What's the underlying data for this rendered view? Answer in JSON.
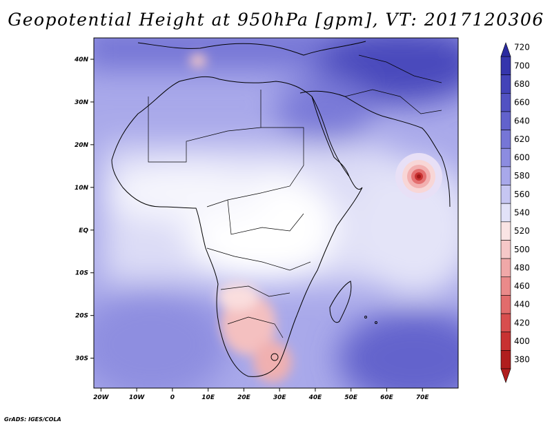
{
  "title": "Geopotential Height at 950hPa [gpm], VT: 2017120306",
  "credit": "GrADS: IGES/COLA",
  "map": {
    "projection": "lat-lon",
    "lon_range": [
      -22,
      80
    ],
    "lat_range": [
      -37,
      45
    ],
    "x_ticks": [
      {
        "lon": -20,
        "label": "20W"
      },
      {
        "lon": -10,
        "label": "10W"
      },
      {
        "lon": 0,
        "label": "0"
      },
      {
        "lon": 10,
        "label": "10E"
      },
      {
        "lon": 20,
        "label": "20E"
      },
      {
        "lon": 30,
        "label": "30E"
      },
      {
        "lon": 40,
        "label": "40E"
      },
      {
        "lon": 50,
        "label": "50E"
      },
      {
        "lon": 60,
        "label": "60E"
      },
      {
        "lon": 70,
        "label": "70E"
      }
    ],
    "y_ticks": [
      {
        "lat": 40,
        "label": "40N"
      },
      {
        "lat": 30,
        "label": "30N"
      },
      {
        "lat": 20,
        "label": "20N"
      },
      {
        "lat": 10,
        "label": "10N"
      },
      {
        "lat": 0,
        "label": "EQ"
      },
      {
        "lat": -10,
        "label": "10S"
      },
      {
        "lat": -20,
        "label": "20S"
      },
      {
        "lat": -30,
        "label": "30S"
      }
    ],
    "features": [
      {
        "name": "cyclone-low-arabian-sea",
        "lon": 68,
        "lat": 12.5,
        "value_gpm": 400
      },
      {
        "name": "low-western-mediterranean",
        "lon": 4,
        "lat": 40,
        "value_gpm": 530
      },
      {
        "name": "low-southern-africa",
        "lon": 26,
        "lat": -22,
        "value_gpm": 520
      },
      {
        "name": "high-central-asia",
        "lon": 70,
        "lat": 40,
        "value_gpm": 690
      }
    ]
  },
  "colorbar": {
    "levels": [
      720,
      700,
      680,
      660,
      640,
      620,
      600,
      580,
      560,
      540,
      520,
      500,
      480,
      460,
      440,
      420,
      400,
      380
    ],
    "colors": [
      "#2a2aa0",
      "#3535ac",
      "#4343b8",
      "#5252c2",
      "#6262cc",
      "#7676d6",
      "#8c8ce0",
      "#a8a8ea",
      "#c6c6f2",
      "#e2e2f8",
      "#fae4e4",
      "#f6c8c8",
      "#f0a8a8",
      "#ea8a8a",
      "#e26c6c",
      "#d84e4e",
      "#c83232",
      "#b01e1e"
    ]
  }
}
